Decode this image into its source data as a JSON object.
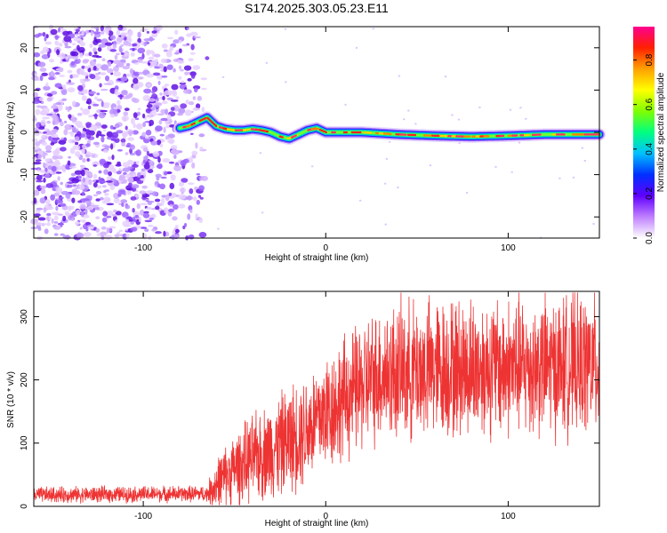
{
  "title": "S174.2025.303.05.23.E11",
  "chart_data": [
    {
      "type": "heatmap",
      "xlabel": "Height of straight line (km)",
      "ylabel": "Frequency (Hz)",
      "xlim": [
        -160,
        150
      ],
      "ylim": [
        -25,
        25
      ],
      "x_ticks": [
        -100,
        0,
        100
      ],
      "x_tick_labels": [
        "-100",
        "0",
        "100"
      ],
      "y_ticks": [
        -20,
        -10,
        0,
        10,
        20
      ],
      "y_tick_labels": [
        "-20",
        "-10",
        "0",
        "10",
        "20"
      ],
      "colorbar": {
        "label": "Normalized spectral amplitude",
        "range": [
          0,
          0.95
        ],
        "ticks": [
          0,
          0.2,
          0.4,
          0.6,
          0.8
        ],
        "tick_labels": [
          "0.0",
          "0.2",
          "0.4",
          "0.6",
          "0.8"
        ],
        "colors": [
          "#ffffff",
          "#c080ff",
          "#6000ff",
          "#0030ff",
          "#00c0ff",
          "#00ff80",
          "#80ff00",
          "#ffff00",
          "#ffa000",
          "#ff2000",
          "#ff0090"
        ]
      },
      "noise_region_x": [
        -160,
        -65
      ],
      "ridge": {
        "x": [
          -80,
          -75,
          -70,
          -65,
          -60,
          -55,
          -50,
          -45,
          -40,
          -35,
          -30,
          -25,
          -20,
          -15,
          -10,
          -5,
          0,
          10,
          20,
          40,
          60,
          80,
          100,
          120,
          140,
          150
        ],
        "freq": [
          1,
          1.5,
          2.5,
          3.5,
          1.5,
          0.8,
          0.5,
          0.5,
          0.8,
          0.5,
          0,
          -1,
          -1.5,
          -0.5,
          0.5,
          1,
          0,
          0,
          0,
          -0.5,
          -0.8,
          -1,
          -0.8,
          -0.5,
          -0.5,
          -0.5
        ]
      }
    },
    {
      "type": "line",
      "xlabel": "Height of straight line (km)",
      "ylabel": "SNR (10 * v/v)",
      "xlim": [
        -160,
        150
      ],
      "ylim": [
        0,
        340
      ],
      "x_ticks": [
        -100,
        0,
        100
      ],
      "x_tick_labels": [
        "-100",
        "0",
        "100"
      ],
      "y_ticks": [
        0,
        100,
        200,
        300
      ],
      "y_tick_labels": [
        "0",
        "100",
        "200",
        "300"
      ],
      "color": "#ee3333",
      "trend": {
        "x": [
          -160,
          -65,
          -60,
          -50,
          -40,
          -30,
          -20,
          -10,
          0,
          10,
          20,
          30,
          50,
          80,
          100,
          130,
          150
        ],
        "y": [
          18,
          20,
          35,
          60,
          75,
          90,
          105,
          125,
          150,
          170,
          190,
          210,
          215,
          220,
          220,
          222,
          225
        ]
      },
      "spread": {
        "x": [
          -160,
          -65,
          -60,
          -40,
          -20,
          0,
          20,
          40,
          80,
          120,
          150
        ],
        "y": [
          15,
          15,
          50,
          80,
          100,
          110,
          120,
          130,
          130,
          130,
          130
        ]
      }
    }
  ]
}
